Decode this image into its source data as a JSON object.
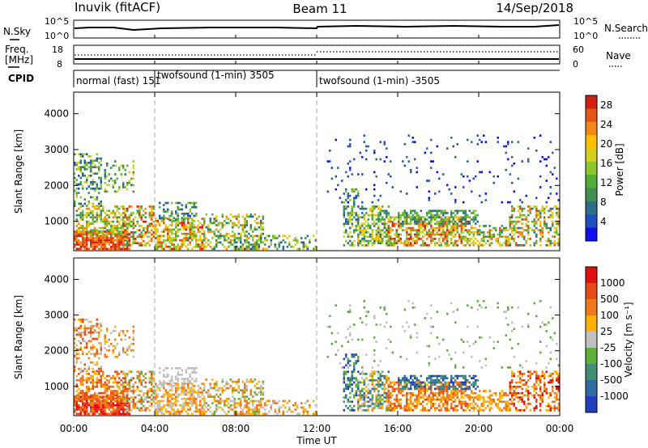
{
  "header": {
    "station": "Inuvik (fitACF)",
    "beam": "Beam 11",
    "date": "14/Sep/2018"
  },
  "nsky_panel": {
    "label": "N.Sky",
    "left_ticks": [
      "10^5",
      "10^0"
    ],
    "right_ticks": [
      "10^5",
      "10^0"
    ],
    "right_label": "N.Search"
  },
  "freq_panel": {
    "label_line1": "Freq.",
    "label_line2": "[MHz]",
    "left_ticks": [
      "18",
      "8"
    ],
    "right_ticks": [
      "60",
      "0"
    ],
    "right_label": "Nave"
  },
  "cpid": {
    "label": "CPID",
    "segments": [
      {
        "text": "normal (fast) 151",
        "start_hour": 0
      },
      {
        "text": "twofsound (1-min) 3505",
        "start_hour": 4
      },
      {
        "text": "twofsound (1-min) -3505",
        "start_hour": 12
      }
    ]
  },
  "x_axis": {
    "title": "Time UT",
    "ticks": [
      "00:00",
      "04:00",
      "08:00",
      "12:00",
      "16:00",
      "20:00",
      "00:00"
    ],
    "tick_hours": [
      0,
      4,
      8,
      12,
      16,
      20,
      24
    ]
  },
  "chart_data": [
    {
      "type": "heatmap",
      "name": "power",
      "ylabel": "Slant Range [km]",
      "ylim": [
        180,
        4600
      ],
      "y_ticks": [
        1000,
        2000,
        3000,
        4000
      ],
      "xlim_hours": [
        0,
        24
      ],
      "colorbar": {
        "label": "Power [dB]",
        "ticks": [
          "4",
          "8",
          "12",
          "16",
          "20",
          "24",
          "28"
        ],
        "tick_values": [
          4,
          8,
          12,
          16,
          20,
          24,
          28
        ],
        "range": [
          0,
          30
        ],
        "colors": [
          "#1010ee",
          "#1f4fbf",
          "#2f6b8a",
          "#3f8f55",
          "#4fae35",
          "#8cc82a",
          "#d4d020",
          "#ffc000",
          "#f08a15",
          "#e25512",
          "#d42010"
        ]
      }
    },
    {
      "type": "heatmap",
      "name": "velocity",
      "ylabel": "Slant Range [km]",
      "ylim": [
        180,
        4600
      ],
      "y_ticks": [
        1000,
        2000,
        3000,
        4000
      ],
      "xlim_hours": [
        0,
        24
      ],
      "colorbar": {
        "label": "Velocity [m s⁻¹]",
        "ticks": [
          "1000",
          "500",
          "100",
          "25",
          "-25",
          "-100",
          "-500",
          "-1000"
        ],
        "colors": [
          "#1f3fbf",
          "#2f6ba0",
          "#3f8f75",
          "#5faf3a",
          "#c0c0c0",
          "#ffb000",
          "#f07818",
          "#e84a15",
          "#e01010"
        ]
      }
    }
  ]
}
